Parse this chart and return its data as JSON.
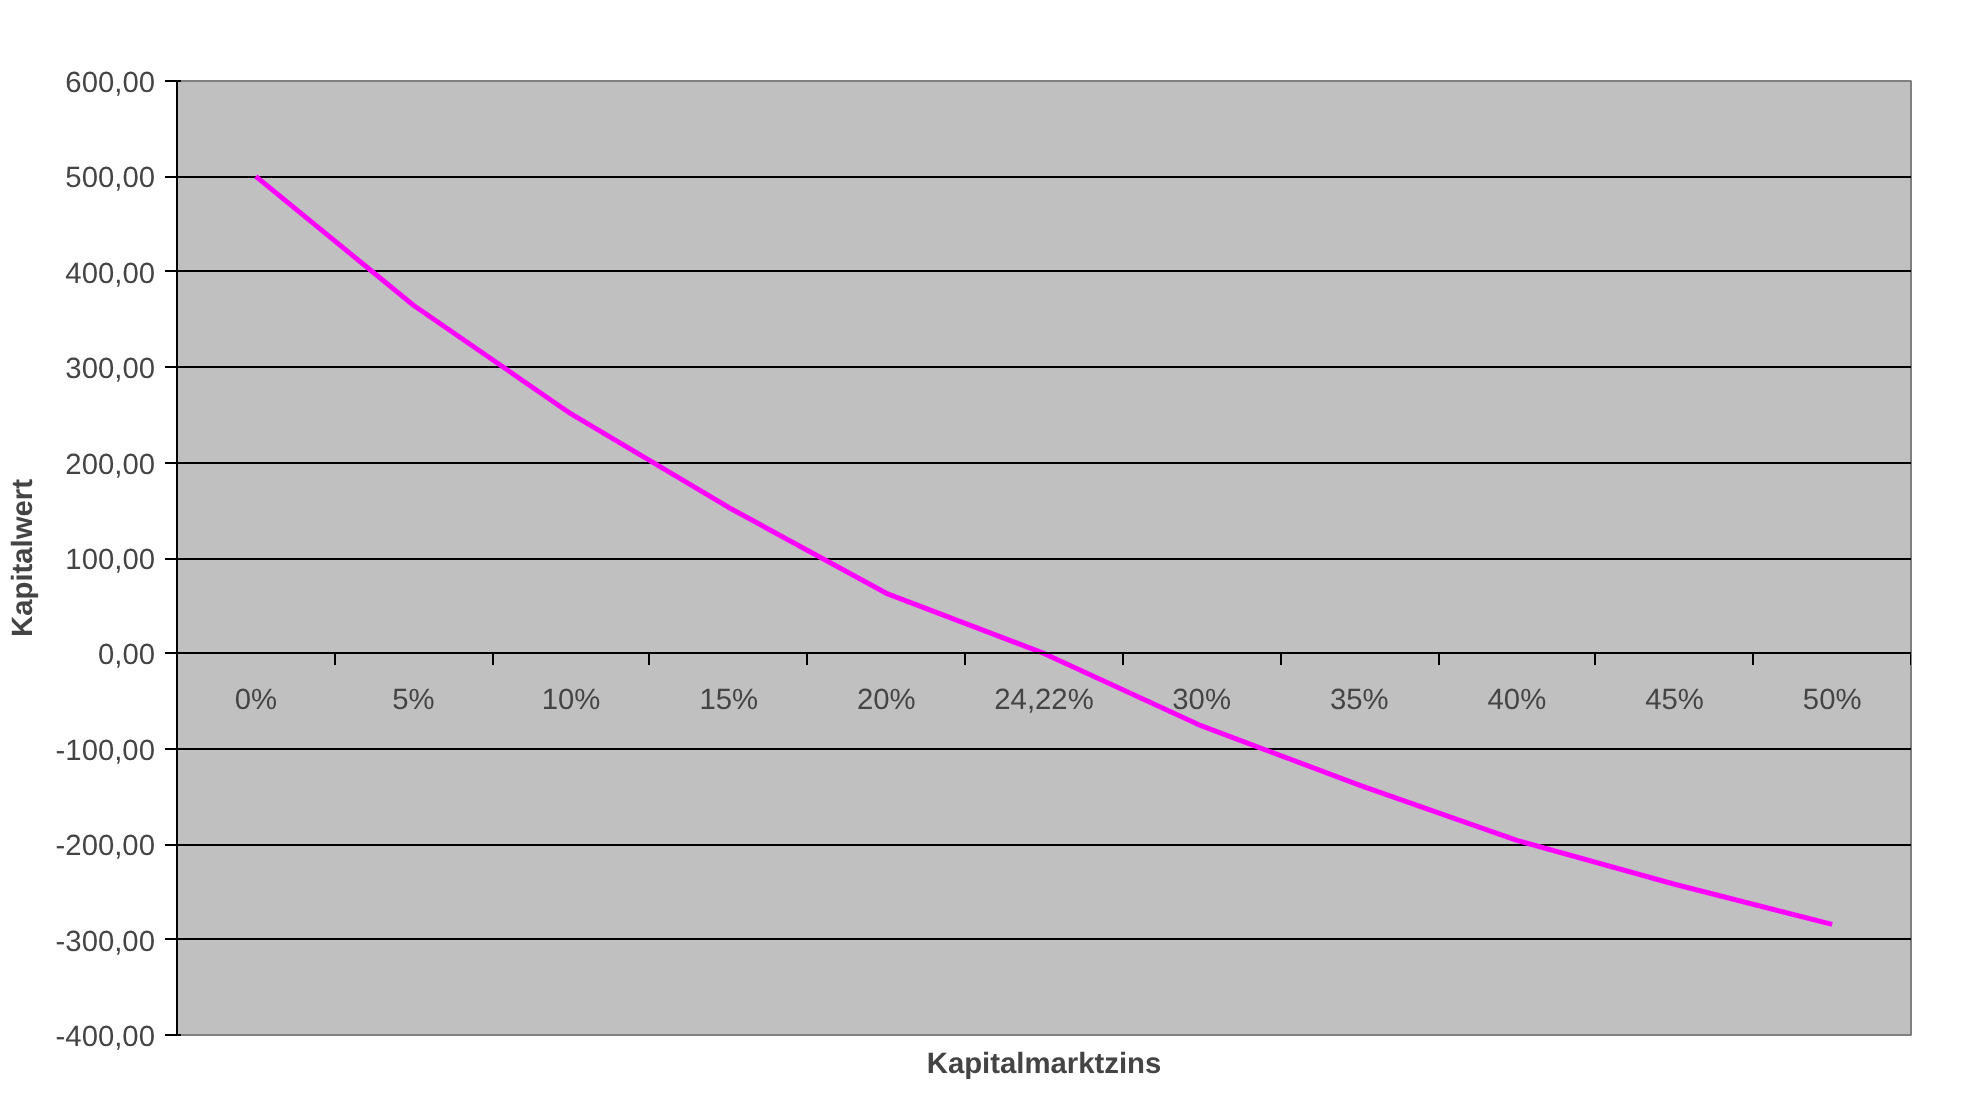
{
  "chart_data": {
    "type": "line",
    "xlabel": "Kapitalmarktzins",
    "ylabel": "Kapitalwert",
    "categories": [
      "0%",
      "5%",
      "10%",
      "15%",
      "20%",
      "24,22%",
      "30%",
      "35%",
      "40%",
      "45%",
      "50%"
    ],
    "series": [
      {
        "color": "#ff00ff",
        "values": [
          500,
          365,
          251,
          153,
          63,
          0,
          -76,
          -138,
          -196,
          -242,
          -284
        ]
      }
    ],
    "ylim": [
      -400,
      600
    ],
    "yticks": [
      {
        "value": -400,
        "label": "-400,00"
      },
      {
        "value": -300,
        "label": "-300,00"
      },
      {
        "value": -200,
        "label": "-200,00"
      },
      {
        "value": -100,
        "label": "-100,00"
      },
      {
        "value": 0,
        "label": "0,00"
      },
      {
        "value": 100,
        "label": "100,00"
      },
      {
        "value": 200,
        "label": "200,00"
      },
      {
        "value": 300,
        "label": "300,00"
      },
      {
        "value": 400,
        "label": "400,00"
      },
      {
        "value": 500,
        "label": "500,00"
      },
      {
        "value": 600,
        "label": "600,00"
      }
    ],
    "grid": "y",
    "marker": "none",
    "line_style": "solid"
  }
}
